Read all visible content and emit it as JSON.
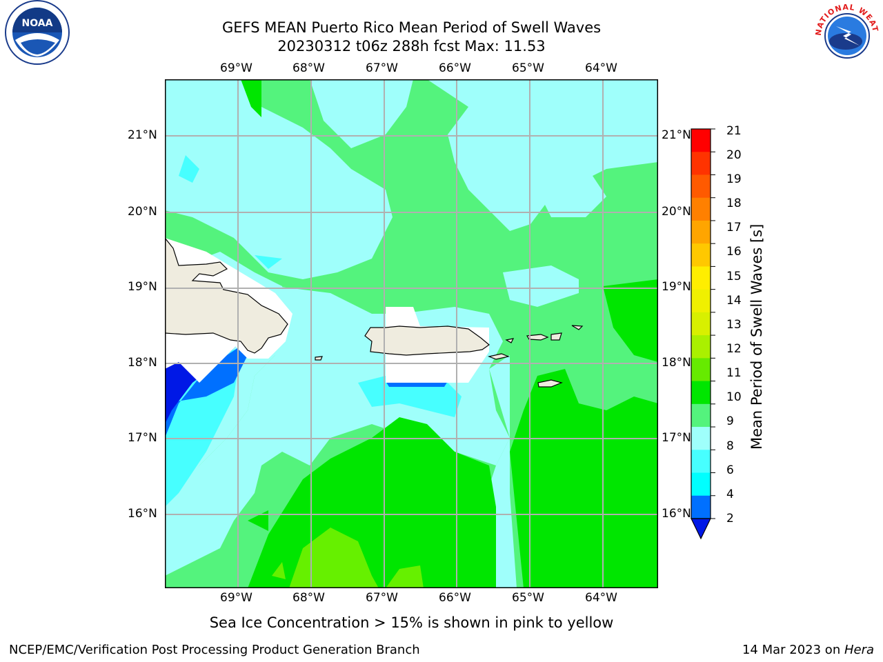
{
  "title_line1": "GEFS MEAN Puerto Rico Mean Period of Swell Waves",
  "title_line2": "20230312 t06z 288h fcst   Max: 11.53",
  "note": "Sea Ice Concentration > 15% is shown in pink to yellow",
  "footer_left": "NCEP/EMC/Verification Post Processing Product Generation Branch",
  "footer_right_date": "14 Mar 2023 on ",
  "footer_right_host": "Hera",
  "logos": {
    "left": "noaa-logo",
    "right": "nws-logo",
    "noaa_text": "NOAA",
    "nws_text": "NATIONAL WEATHER SERVICE"
  },
  "map": {
    "lon_labels": [
      "69°W",
      "68°W",
      "67°W",
      "66°W",
      "65°W",
      "64°W"
    ],
    "lat_labels": [
      "21°N",
      "20°N",
      "19°N",
      "18°N",
      "17°N",
      "16°N"
    ],
    "colors": {
      "land": "#efecdf",
      "ocean_lt_green": "#54f37d",
      "ocean_green": "#00e600",
      "ocean_lime": "#66f000",
      "ocean_pale_cyan": "#9ffffb",
      "ocean_cyan": "#47ffff",
      "ocean_blue": "#0070ff",
      "ocean_dark_blue": "#0018e6",
      "grid": "#b0b0b0"
    }
  },
  "colorbar": {
    "label": "Mean Period of Swell Waves [s]",
    "ticks": [
      "21",
      "20",
      "19",
      "18",
      "17",
      "16",
      "15",
      "14",
      "13",
      "12",
      "11",
      "10",
      "9",
      "8",
      "6",
      "4",
      "2"
    ],
    "colors": [
      "#ff0000",
      "#ff3300",
      "#ff5a00",
      "#ff8000",
      "#ffa500",
      "#ffc800",
      "#ffee00",
      "#f0f000",
      "#d8f000",
      "#aaf000",
      "#66ea00",
      "#00e600",
      "#54f37d",
      "#9ffffb",
      "#47ffff",
      "#00ffff",
      "#0070ff",
      "#0018e6"
    ]
  }
}
